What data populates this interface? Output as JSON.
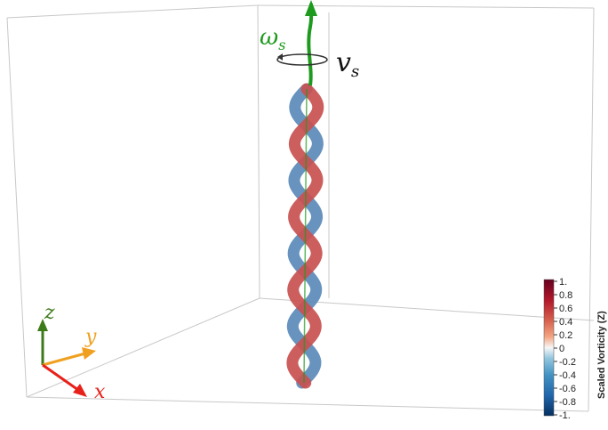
{
  "labels": {
    "omega": "ω",
    "omega_sub": "s",
    "v": "v",
    "v_sub": "s"
  },
  "axes_triad": {
    "z_label": "z",
    "y_label": "y",
    "x_label": "x",
    "z_color": "#3d7a1a",
    "y_color": "#f0a020",
    "x_color": "#e8201a"
  },
  "colorbar": {
    "title": "Scaled Vorticity (Z)",
    "ticks": [
      "1.",
      "0.8",
      "0.6",
      "0.4",
      "0.2",
      "0",
      "-0.2",
      "-0.4",
      "-0.6",
      "-0.8",
      "-1."
    ]
  },
  "colors": {
    "vortex_axis": "#1e9a1e",
    "positive_strand": "#c85050",
    "negative_strand": "#5a8ab8",
    "box_lines": "#c8c8c8"
  }
}
